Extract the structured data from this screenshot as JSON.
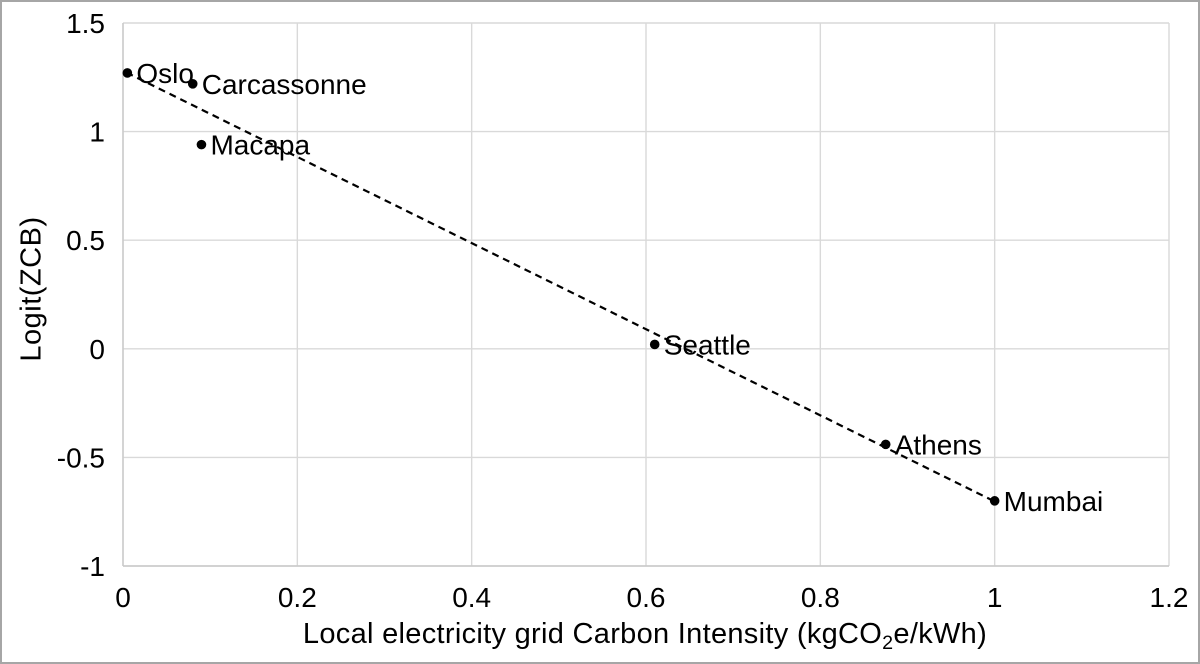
{
  "figure": {
    "background": "#ffffff",
    "border_color": "#a6a6a6"
  },
  "chart_data": {
    "type": "scatter",
    "title": "",
    "ylabel": "Logit(ZCB)",
    "xlabel": {
      "pre": "Local electricity grid Carbon Intensity (kgCO",
      "sub": "2",
      "post": "e/kWh)"
    },
    "xlim": [
      0,
      1.2
    ],
    "ylim": [
      -1,
      1.5
    ],
    "x_ticks": [
      0,
      0.2,
      0.4,
      0.6,
      0.8,
      1,
      1.2
    ],
    "x_tick_labels": [
      "0",
      "0.2",
      "0.4",
      "0.6",
      "0.8",
      "1",
      "1.2"
    ],
    "y_ticks": [
      1.5,
      1,
      0.5,
      0,
      -0.5,
      -1
    ],
    "y_tick_labels": [
      "1.5",
      "1",
      "0.5",
      "0",
      "-0.5",
      "-1"
    ],
    "grid": true,
    "legend_position": "none",
    "points": [
      {
        "label": "Oslo",
        "x": 0.005,
        "y": 1.27
      },
      {
        "label": "Carcassonne",
        "x": 0.08,
        "y": 1.22
      },
      {
        "label": "Macapa",
        "x": 0.09,
        "y": 0.94
      },
      {
        "label": "Seattle",
        "x": 0.61,
        "y": 0.02
      },
      {
        "label": "Athens",
        "x": 0.875,
        "y": -0.44
      },
      {
        "label": "Mumbai",
        "x": 1.0,
        "y": -0.7
      }
    ],
    "trendline": {
      "style": "dashed",
      "x1": 0.004,
      "y1": 1.272,
      "x2": 1.0,
      "y2": -0.703
    },
    "colors": {
      "point": "#000000",
      "trendline": "#000000",
      "gridline": "#d9d9d9",
      "axis_line": "#c9c9c9",
      "text": "#000000"
    }
  }
}
